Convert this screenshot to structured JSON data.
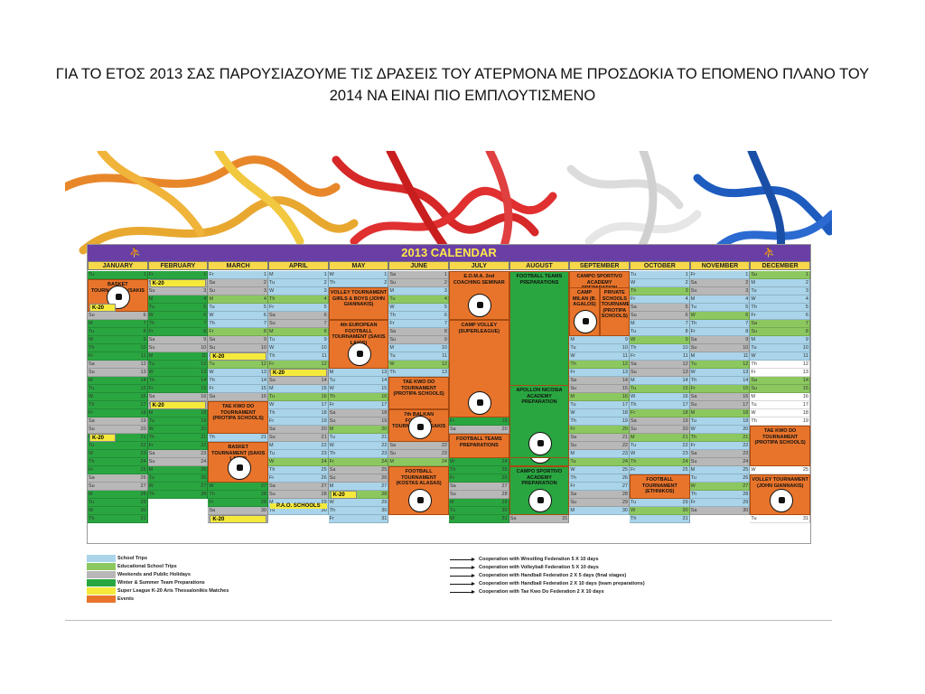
{
  "slide": {
    "title": "ΓΙΑ ΤΟ ΕΤΟΣ 2013 ΣΑΣ ΠΑΡΟΥΣΙΑΖΟΥΜΕ ΤΙΣ ΔΡΑΣΕΙΣ ΤΟΥ ΑΤΕΡΜΟΝΑ  ΜΕ ΠΡΟΣΔΟΚΙΑ ΤΟ ΕΠΟΜΕΝΟ ΠΛΑΝΟ ΤΟΥ 2014 ΝΑ ΕΙΝΑΙ ΠΙΟ ΕΜΠΛΟΥΤΙΣΜΕΝΟ"
  },
  "calendar": {
    "title": "2013 CALENDAR",
    "months": [
      "JANUARY",
      "FEBRUARY",
      "MARCH",
      "APRIL",
      "MAY",
      "JUNE",
      "JULY",
      "AUGUST",
      "SEPTEMBER",
      "OCTOBER",
      "NOVEMBER",
      "DECEMBER"
    ],
    "first_weekday": [
      1,
      4,
      4,
      0,
      2,
      5,
      0,
      3,
      6,
      1,
      4,
      6
    ],
    "days_in_month": [
      31,
      28,
      31,
      30,
      31,
      30,
      31,
      31,
      30,
      31,
      30,
      31
    ],
    "weekday_abbr": [
      "M",
      "Tu",
      "W",
      "Th",
      "Fr",
      "Sa",
      "Su"
    ],
    "colors": {
      "school_trips": "#a9d4ea",
      "educational_trips": "#8cc860",
      "weekend": "#b8b8b8",
      "camp": "#2aa640",
      "event": "#e8742b",
      "k20": "#f5ea3c",
      "header_bar": "#6a3fa5",
      "month_header": "#f7d84a"
    },
    "events": [
      {
        "label": "BASKET TOURNAMENT (SAKIS LAIOS)"
      },
      {
        "label": "VOLLEY TOURNAMENT GIRLS & BOYS (JOHN GIANNAKIS)"
      },
      {
        "label": "4th EUROPEAN FOOTBALL TOURNAMENT (SAKIS LAIOS)"
      },
      {
        "label": "E.O.M.A. 2nd COACHING SEMINAR"
      },
      {
        "label": "CAMP VOLLEY (SUPERLEAGUE)"
      },
      {
        "label": "FOOTBALL TEAMS PREPARATIONS"
      },
      {
        "label": "CAMPO SPORTIVO ACADEMY PREPARATION"
      },
      {
        "label": "CAMP MILAN (B. AGALOS)"
      },
      {
        "label": "PRIVATE SCHOOLS TOURNAMENT (PROTIPA SCHOOLS)"
      },
      {
        "label": "TAE KWO DO TOURNAMENT (PROTIPA SCHOOLS)"
      },
      {
        "label": "7th BALKAN FOOTBALL TOURNAMENT (SAKIS LAIOS)"
      },
      {
        "label": "APOLLON NICOSIA ACADEMY PREPARATION"
      },
      {
        "label": "FOOTBALL TOURNAMENT (KOSTAS ALASAS)"
      },
      {
        "label": "P.A.O. SCHOOLS"
      },
      {
        "label": "FOOTBALL TOURNAMENT (ETHNIKOS)"
      },
      {
        "label": "VOLLEY TOURNAMENT (JOHN GIANNAKIS)"
      }
    ],
    "k20_label": "K-20",
    "pao_label": "P.A.O. SCHOOLS"
  },
  "legend": [
    {
      "label": "School Trips",
      "color": "#a9d4ea"
    },
    {
      "label": "Educational School Trips",
      "color": "#8cc860"
    },
    {
      "label": "Weekends and Public Holidays",
      "color": "#b8b8b8"
    },
    {
      "label": "Winter & Summer Team Preparations",
      "color": "#2aa640"
    },
    {
      "label": "Super League K-20 Aris Thessalonikis Matches",
      "color": "#f5ea3c"
    },
    {
      "label": "Events",
      "color": "#e8742b"
    }
  ],
  "cooperations": [
    "Cooperation with Wrestling Federation 5 X 10 days",
    "Cooperation with Volleyball Federation 5 X 10 days",
    "Cooperation with Handball Federation 2 X 5 days (final stages)",
    "Cooperation with Handball Federation 2 X 10 days (team preparations)",
    "Cooperation with Tae Kwo Do Federation 2 X 10 days"
  ]
}
